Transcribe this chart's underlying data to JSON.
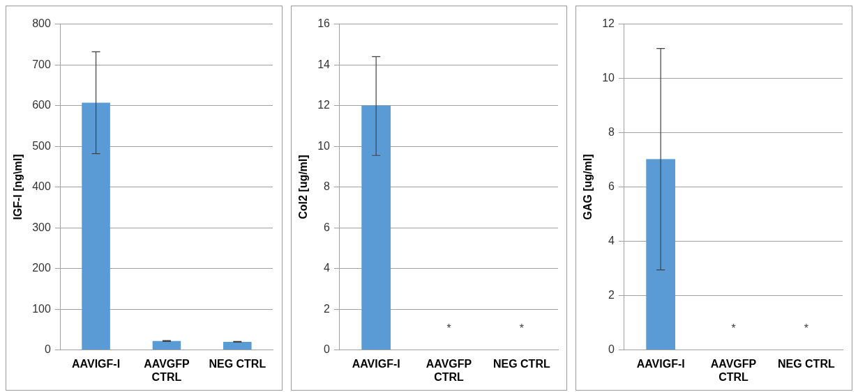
{
  "chart_data": [
    {
      "type": "bar",
      "ylabel": "IGF-I [ng\\ml]",
      "categories": [
        "AAVIGF-I",
        "AAVGFP CTRL",
        "NEG CTRL"
      ],
      "values": [
        607,
        22,
        20
      ],
      "errors": [
        [
          482,
          732
        ],
        1,
        1
      ],
      "color": "#5b9bd5",
      "ylim": [
        0,
        800
      ],
      "yticks": [
        0,
        100,
        200,
        300,
        400,
        500,
        600,
        700,
        800
      ],
      "grid": "y"
    },
    {
      "type": "bar",
      "ylabel": "Col2 [ug/ml]",
      "categories": [
        "AAVIGF-I",
        "AAVGFP CTRL",
        "NEG CTRL"
      ],
      "values": [
        12,
        0,
        0
      ],
      "errors": [
        [
          9.55,
          14.4
        ],
        null,
        null
      ],
      "color": "#5b9bd5",
      "ylim": [
        0,
        16
      ],
      "yticks": [
        0,
        2,
        4,
        6,
        8,
        10,
        12,
        14,
        16
      ],
      "grid": "y",
      "annotations": [
        "*",
        "*"
      ]
    },
    {
      "type": "bar",
      "ylabel": "GAG [ug/ml]",
      "categories": [
        "AAVIGF-I",
        "AAVGFP CTRL",
        "NEG CTRL"
      ],
      "values": [
        7.03,
        0,
        0
      ],
      "errors": [
        [
          2.95,
          11.1
        ],
        null,
        null
      ],
      "color": "#5b9bd5",
      "ylim": [
        0,
        12
      ],
      "yticks": [
        0,
        2,
        4,
        6,
        8,
        10,
        12
      ],
      "grid": "y",
      "annotations": [
        "*",
        "*"
      ]
    }
  ]
}
